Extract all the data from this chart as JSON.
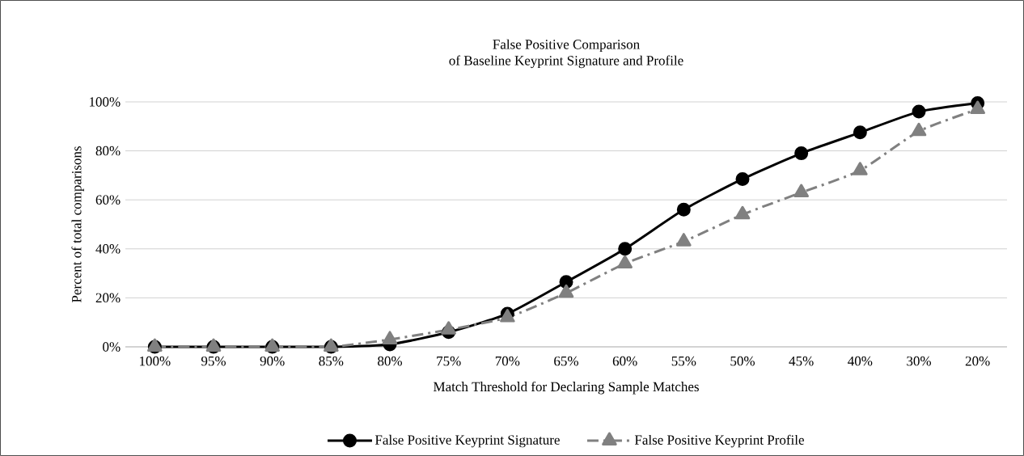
{
  "chart_data": {
    "type": "line",
    "title": "False Positive Comparison",
    "subtitle": "of Baseline Keyprint Signature and Profile",
    "xlabel": "Match Threshold for Declaring Sample Matches",
    "ylabel": "Percent of total comparisons",
    "categories": [
      "100%",
      "95%",
      "90%",
      "85%",
      "80%",
      "75%",
      "70%",
      "65%",
      "60%",
      "55%",
      "50%",
      "45%",
      "40%",
      "30%",
      "20%"
    ],
    "series": [
      {
        "name": "False Positive Keyprint Signature",
        "color": "#000000",
        "marker": "circle",
        "line_style": "solid",
        "values": [
          0,
          0,
          0,
          0,
          1,
          6,
          13.5,
          26.5,
          40,
          56,
          68.5,
          79,
          87.5,
          96,
          99.5
        ]
      },
      {
        "name": "False Positive Keyprint Profile",
        "color": "#808080",
        "marker": "triangle",
        "line_style": "dashed",
        "values": [
          0,
          0,
          0,
          0,
          3,
          7,
          12,
          22,
          34,
          43,
          54,
          63,
          72,
          88,
          97
        ]
      }
    ],
    "ylim": [
      0,
      100
    ],
    "yticks": [
      {
        "value": 0,
        "label": "0%"
      },
      {
        "value": 20,
        "label": "20%"
      },
      {
        "value": 40,
        "label": "40%"
      },
      {
        "value": 60,
        "label": "60%"
      },
      {
        "value": 80,
        "label": "80%"
      },
      {
        "value": 100,
        "label": "100%"
      }
    ],
    "grid": "y",
    "legend": "bottom"
  }
}
